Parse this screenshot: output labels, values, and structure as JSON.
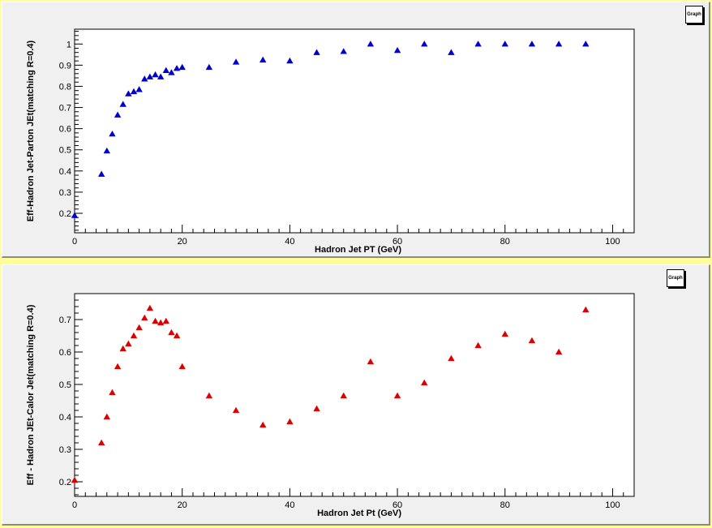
{
  "chart_data": [
    {
      "type": "scatter",
      "title_box": "Graph",
      "xlabel": "Hadron Jet PT (GeV)",
      "ylabel": "Eff-Hadron Jet-Parton JEt(matching R=0.4)",
      "xlim": [
        0,
        104
      ],
      "ylim": [
        0.108,
        1.07
      ],
      "xticks": [
        0,
        20,
        40,
        60,
        80,
        100
      ],
      "yticks": [
        0.2,
        0.3,
        0.4,
        0.5,
        0.6,
        0.7,
        0.8,
        0.9,
        1
      ],
      "marker": "triangle-up",
      "color": "#0000cc",
      "x": [
        0,
        5,
        6,
        7,
        8,
        9,
        10,
        11,
        12,
        13,
        14,
        15,
        16,
        17,
        18,
        19,
        20,
        25,
        30,
        35,
        40,
        45,
        50,
        55,
        60,
        65,
        70,
        75,
        80,
        85,
        90,
        95
      ],
      "y": [
        0.19,
        0.385,
        0.495,
        0.575,
        0.665,
        0.715,
        0.765,
        0.775,
        0.785,
        0.835,
        0.845,
        0.855,
        0.845,
        0.875,
        0.865,
        0.885,
        0.89,
        0.89,
        0.915,
        0.925,
        0.92,
        0.96,
        0.965,
        1.0,
        0.97,
        1.0,
        0.96,
        1.0,
        1.0,
        1.0,
        1.0,
        1.0
      ]
    },
    {
      "type": "scatter",
      "title_box": "Graph",
      "xlabel": "Hadron Jet Pt (GeV)",
      "ylabel": "Eff - Hadron JEt-Calor Jet(matching R=0.4)",
      "xlim": [
        0,
        104
      ],
      "ylim": [
        0.155,
        0.78
      ],
      "xticks": [
        0,
        20,
        40,
        60,
        80,
        100
      ],
      "yticks": [
        0.2,
        0.3,
        0.4,
        0.5,
        0.6,
        0.7
      ],
      "marker": "triangle-up",
      "color": "#dd0000",
      "x": [
        0,
        5,
        6,
        7,
        8,
        9,
        10,
        11,
        12,
        13,
        14,
        15,
        16,
        17,
        18,
        19,
        20,
        25,
        30,
        35,
        40,
        45,
        50,
        55,
        60,
        65,
        70,
        75,
        80,
        85,
        90,
        95
      ],
      "y": [
        0.205,
        0.32,
        0.4,
        0.475,
        0.555,
        0.61,
        0.625,
        0.65,
        0.675,
        0.705,
        0.735,
        0.695,
        0.69,
        0.695,
        0.66,
        0.65,
        0.555,
        0.465,
        0.42,
        0.375,
        0.385,
        0.425,
        0.465,
        0.57,
        0.465,
        0.505,
        0.58,
        0.62,
        0.655,
        0.635,
        0.6,
        0.73
      ]
    }
  ]
}
